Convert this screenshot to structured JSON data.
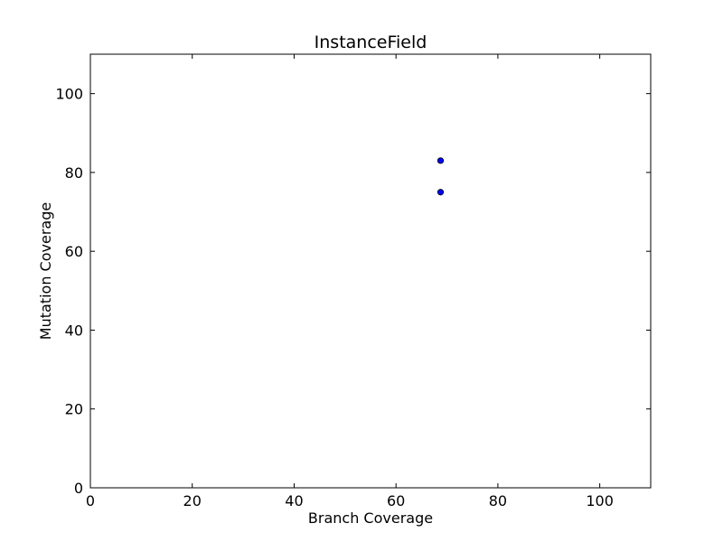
{
  "chart_data": {
    "type": "scatter",
    "title": "InstanceField",
    "xlabel": "Branch Coverage",
    "ylabel": "Mutation Coverage",
    "xlim": [
      0,
      110
    ],
    "ylim": [
      0,
      110
    ],
    "xticks": [
      "0",
      "20",
      "40",
      "60",
      "80",
      "100"
    ],
    "yticks": [
      "0",
      "20",
      "40",
      "60",
      "80",
      "100"
    ],
    "grid": false,
    "series": [
      {
        "x": [
          68.75,
          68.75
        ],
        "y": [
          83.0,
          75.0
        ],
        "color": "#0000ff"
      }
    ]
  }
}
